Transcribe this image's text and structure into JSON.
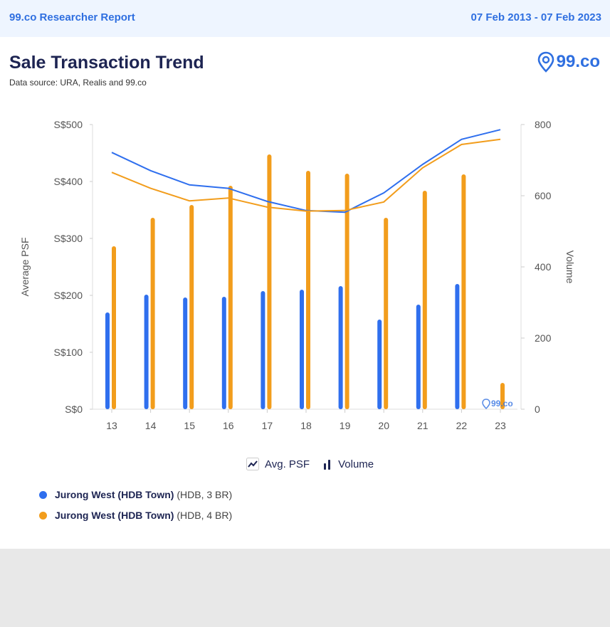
{
  "header": {
    "report": "99.co Researcher Report",
    "date_range": "07 Feb 2013 - 07 Feb 2023"
  },
  "title": "Sale Transaction Trend",
  "subtitle": "Data source: URA, Realis and 99.co",
  "logo": "99.co",
  "chart_data": {
    "type": "bar+line",
    "categories": [
      "13",
      "14",
      "15",
      "16",
      "17",
      "18",
      "19",
      "20",
      "21",
      "22",
      "23"
    ],
    "ylabel": "Average PSF",
    "y2label": "Volume",
    "yticks": [
      "S$0",
      "S$100",
      "S$200",
      "S$300",
      "S$400",
      "S$500"
    ],
    "ylim": [
      0,
      500
    ],
    "y2ticks": [
      "0",
      "200",
      "400",
      "600",
      "800"
    ],
    "y2lim": [
      0,
      800
    ],
    "legend": {
      "line": "Avg. PSF",
      "bar": "Volume"
    },
    "series": [
      {
        "name": "Jurong West (HDB Town)",
        "detail": "(HDB, 3 BR)",
        "color": "#2f6fee",
        "psf": [
          451,
          419,
          394,
          388,
          365,
          349,
          346,
          380,
          430,
          474,
          491
        ],
        "volume": [
          272,
          322,
          314,
          316,
          332,
          336,
          346,
          252,
          294,
          352,
          null
        ]
      },
      {
        "name": "Jurong West (HDB Town)",
        "detail": "(HDB, 4 BR)",
        "color": "#f29d1c",
        "psf": [
          416,
          388,
          366,
          371,
          355,
          348,
          349,
          364,
          424,
          465,
          474
        ],
        "volume": [
          458,
          538,
          574,
          628,
          716,
          670,
          662,
          538,
          614,
          660,
          74
        ]
      }
    ]
  }
}
